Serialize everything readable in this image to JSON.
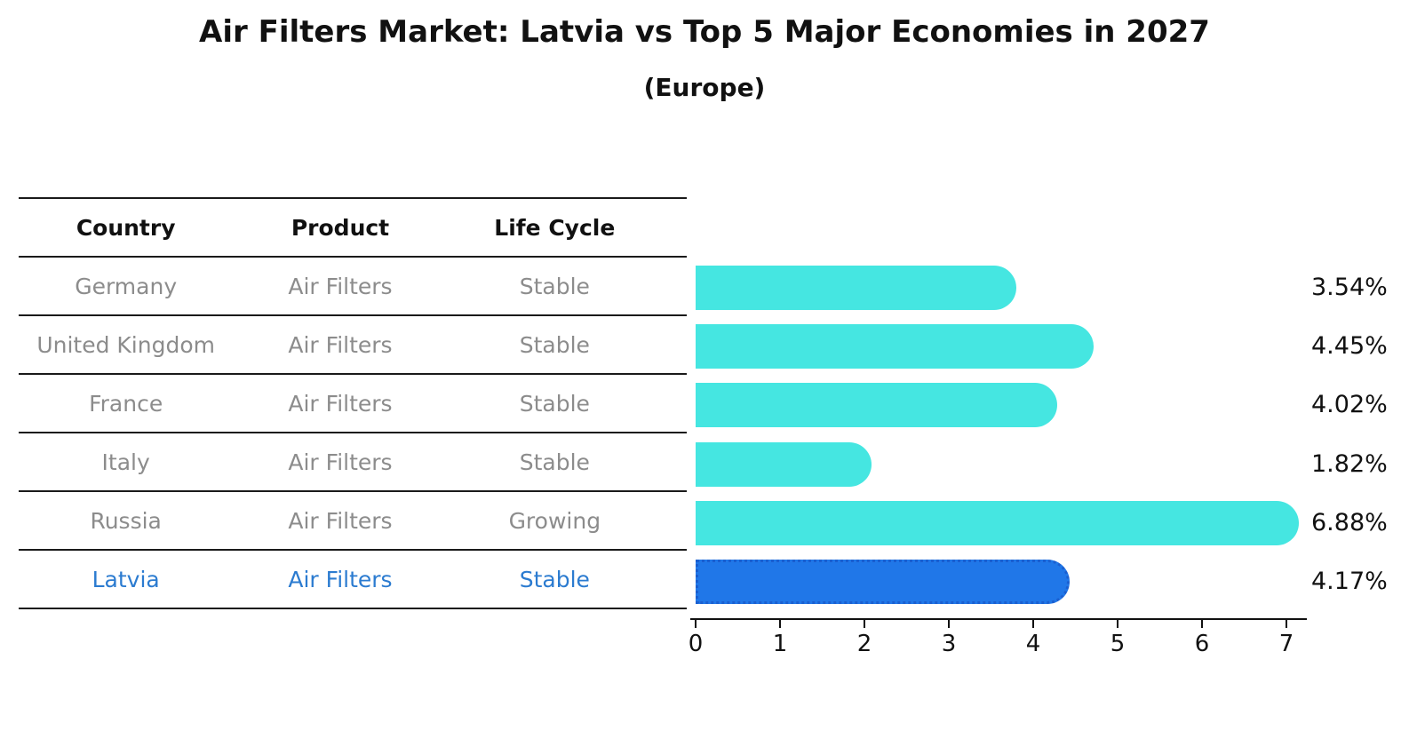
{
  "title": "Air Filters Market: Latvia vs Top 5 Major Economies in 2027",
  "subtitle": "(Europe)",
  "table": {
    "headers": [
      "Country",
      "Product",
      "Life Cycle"
    ],
    "rows": [
      {
        "country": "Germany",
        "product": "Air Filters",
        "life_cycle": "Stable"
      },
      {
        "country": "United Kingdom",
        "product": "Air Filters",
        "life_cycle": "Stable"
      },
      {
        "country": "France",
        "product": "Air Filters",
        "life_cycle": "Stable"
      },
      {
        "country": "Italy",
        "product": "Air Filters",
        "life_cycle": "Stable"
      },
      {
        "country": "Russia",
        "product": "Air Filters",
        "life_cycle": "Growing"
      },
      {
        "country": "Latvia",
        "product": "Air Filters",
        "life_cycle": "Stable"
      }
    ],
    "highlight_row": "Latvia"
  },
  "chart_data": {
    "type": "bar",
    "orientation": "horizontal",
    "title": "Air Filters Market: Latvia vs Top 5 Major Economies in 2027",
    "subtitle": "(Europe)",
    "categories": [
      "Germany",
      "United Kingdom",
      "France",
      "Italy",
      "Russia",
      "Latvia"
    ],
    "values": [
      3.54,
      4.45,
      4.02,
      1.82,
      6.88,
      4.17
    ],
    "value_labels": [
      "3.54%",
      "4.45%",
      "4.02%",
      "1.82%",
      "6.88%",
      "4.17%"
    ],
    "xlim": [
      0,
      7.3
    ],
    "xticks": [
      0,
      1,
      2,
      3,
      4,
      5,
      6,
      7
    ],
    "grid": false,
    "legend": false,
    "bar_color": "#45e6e1",
    "highlight_bar_color": "#2077e8",
    "highlight_bar_border": "#1a5fd0",
    "highlight_index": 5
  },
  "colors": {
    "title_text": "#111111",
    "table_header_text": "#111111",
    "table_body_text": "#8c8c8c",
    "highlight_text": "#2b7bd0",
    "rule": "#1a1a1a",
    "axis": "#111111"
  }
}
